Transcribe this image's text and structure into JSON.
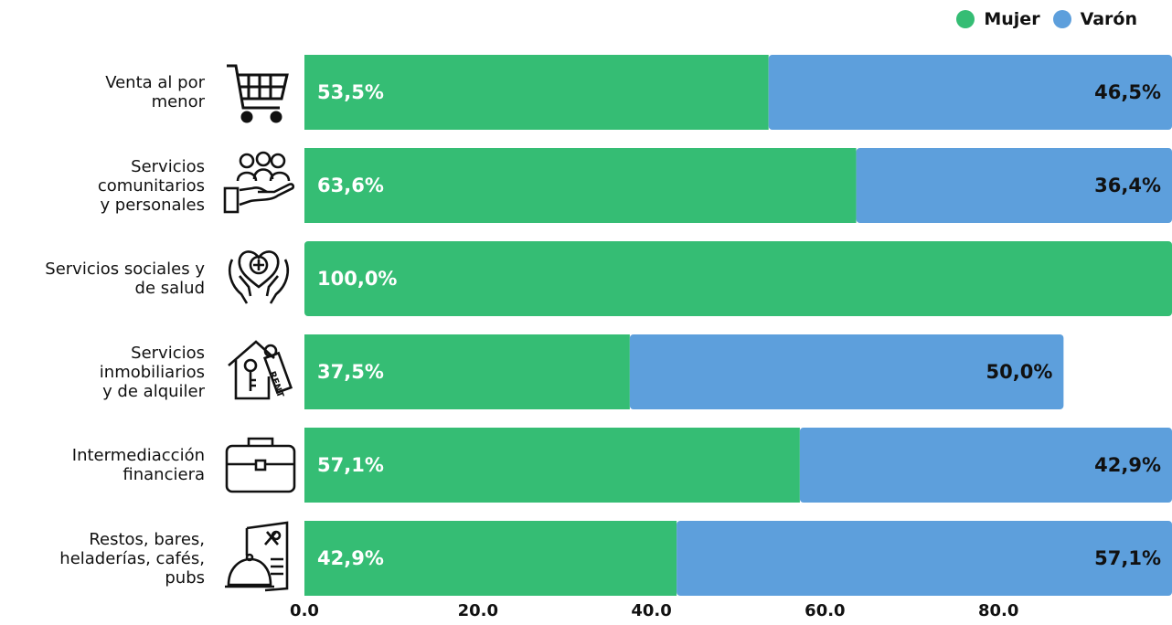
{
  "legend": {
    "mujer_label": "Mujer",
    "varon_label": "Varón"
  },
  "colors": {
    "mujer": "#35bd74",
    "varon": "#5d9fdc"
  },
  "chart_data": {
    "type": "bar",
    "orientation": "horizontal",
    "stacked": true,
    "categories": [
      "Venta al por\nmenor",
      "Servicios\ncomunitarios\ny personales",
      "Servicios sociales y\nde salud",
      "Servicios\ninmobiliarios\ny de alquiler",
      "Intermediacción\nfinanciera",
      "Restos, bares,\nheladerías, cafés,\npubs"
    ],
    "icons": [
      "shopping-cart-icon",
      "community-hand-icon",
      "health-care-hands-icon",
      "rental-house-key-icon",
      "briefcase-icon",
      "restaurant-menu-icon"
    ],
    "series": [
      {
        "name": "Mujer",
        "values": [
          53.5,
          63.6,
          100.0,
          37.5,
          57.1,
          42.9
        ],
        "labels": [
          "53,5%",
          "63,6%",
          "100,0%",
          "37,5%",
          "57,1%",
          "42,9%"
        ]
      },
      {
        "name": "Varón",
        "values": [
          46.5,
          36.4,
          0,
          50.0,
          42.9,
          57.1
        ],
        "labels": [
          "46,5%",
          "36,4%",
          "",
          "50,0%",
          "42,9%",
          "57,1%"
        ]
      }
    ],
    "xlim": [
      0,
      100
    ],
    "xticks": [
      "0.0",
      "20.0",
      "40.0",
      "60.0",
      "80.0"
    ],
    "legend_position": "top-right"
  }
}
